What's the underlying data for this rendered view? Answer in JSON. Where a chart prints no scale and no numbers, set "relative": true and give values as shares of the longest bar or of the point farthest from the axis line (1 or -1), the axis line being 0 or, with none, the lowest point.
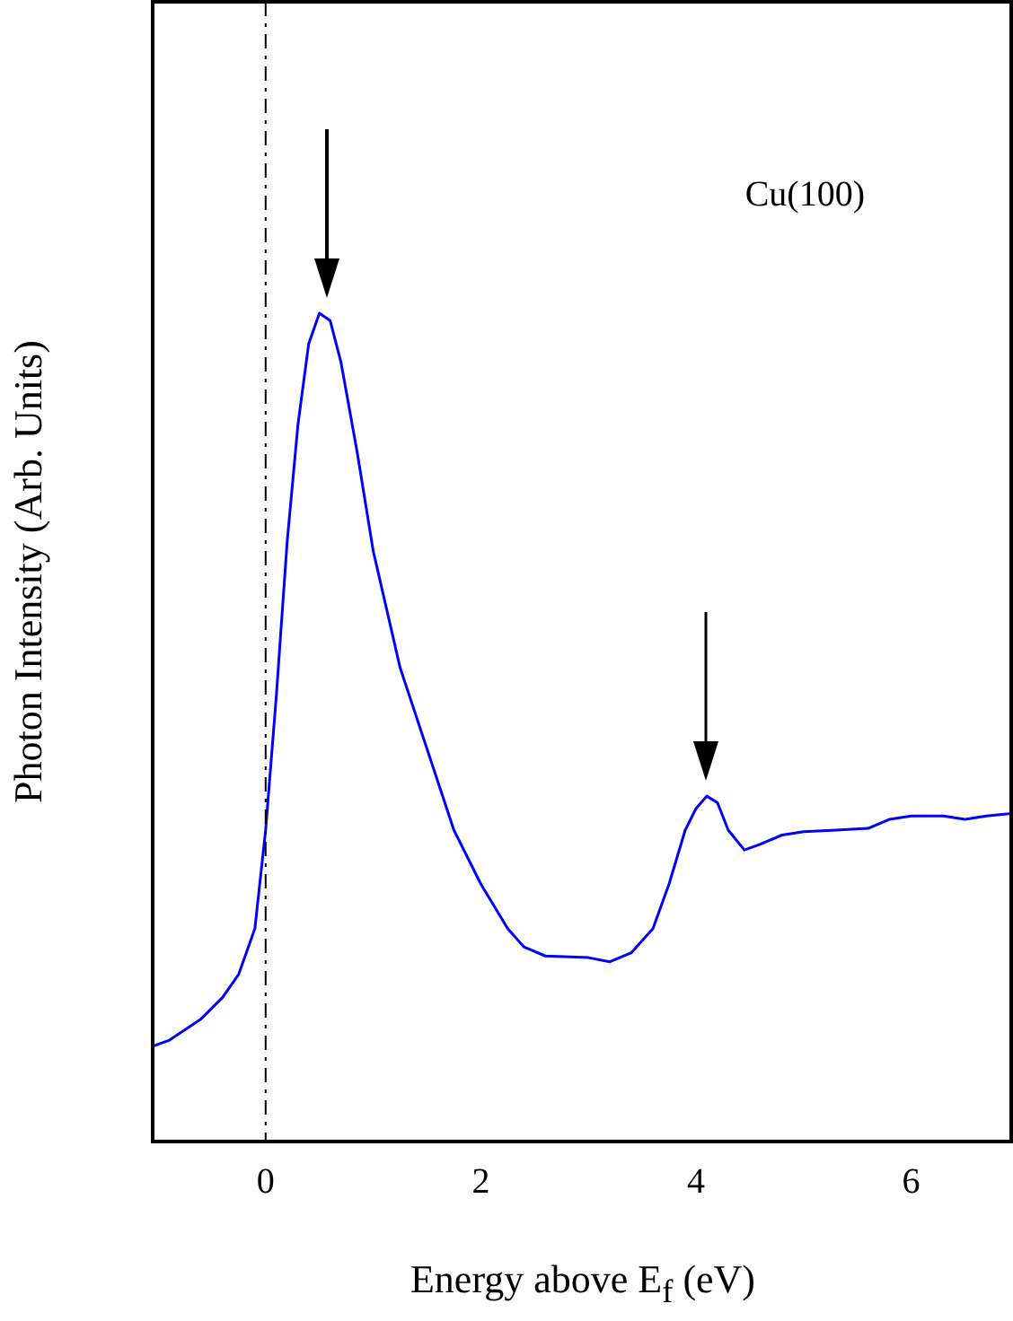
{
  "chart_data": {
    "type": "line",
    "xlabel": "Energy above E$_{f}$ (eV)",
    "ylabel": "Photon Intensity (Arb. Units)",
    "relative": true,
    "color": "#0000ff",
    "xlim": [
      -1.05,
      6.93
    ],
    "xticks": [
      0,
      2,
      4,
      6
    ],
    "grid": false,
    "legend": false,
    "marker": "none",
    "line_style": "solid",
    "annotations": [
      "Cu(100)"
    ],
    "ref_lines": [
      {
        "axis": "x",
        "value": 0,
        "color": "#000000",
        "line_style": "dashdot"
      }
    ],
    "x": [
      -1.05,
      -0.9,
      -0.6,
      -0.4,
      -0.25,
      -0.1,
      0,
      0.1,
      0.2,
      0.3,
      0.4,
      0.5,
      0.6,
      0.7,
      0.85,
      1.0,
      1.25,
      1.5,
      1.75,
      2.0,
      2.25,
      2.4,
      2.6,
      3.0,
      3.2,
      3.4,
      3.6,
      3.75,
      3.9,
      4.0,
      4.1,
      4.2,
      4.3,
      4.45,
      4.6,
      4.8,
      5.0,
      5.3,
      5.6,
      5.8,
      6.0,
      6.3,
      6.5,
      6.7,
      6.93
    ],
    "values": [
      0.115,
      0.122,
      0.148,
      0.174,
      0.202,
      0.257,
      0.376,
      0.539,
      0.724,
      0.865,
      0.963,
      1,
      0.991,
      0.941,
      0.833,
      0.713,
      0.572,
      0.474,
      0.376,
      0.311,
      0.257,
      0.235,
      0.224,
      0.222,
      0.217,
      0.228,
      0.257,
      0.311,
      0.376,
      0.402,
      0.417,
      0.409,
      0.376,
      0.352,
      0.359,
      0.37,
      0.374,
      0.376,
      0.378,
      0.389,
      0.393,
      0.393,
      0.389,
      0.393,
      0.396
    ]
  }
}
